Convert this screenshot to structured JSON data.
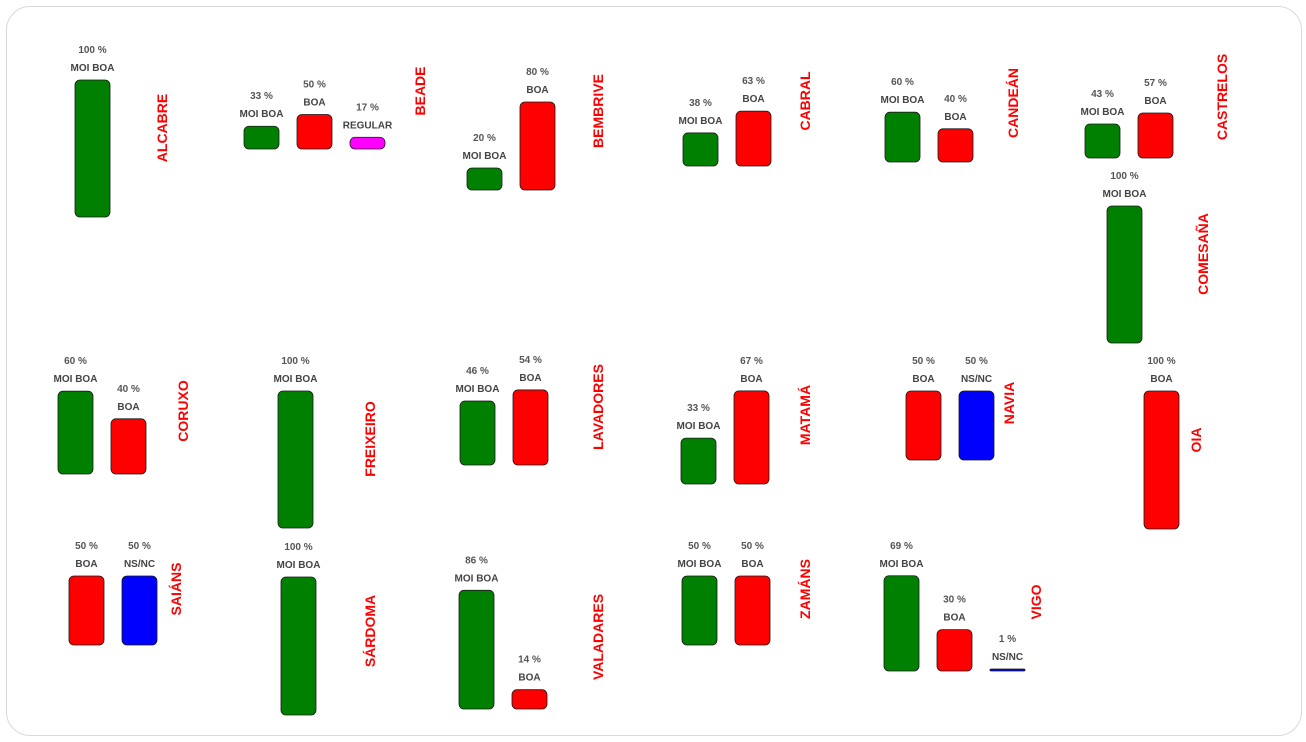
{
  "chart_data": {
    "type": "bar",
    "value_unit": "%",
    "colors": {
      "MOI BOA": "#008000",
      "BOA": "#ff0000",
      "REGULAR": "#ff00ff",
      "NS/NC": "#0000ff"
    },
    "charts": [
      {
        "title": "ALCABRE",
        "bars": [
          {
            "category": "MOI BOA",
            "value": 100,
            "label": "100 %"
          }
        ]
      },
      {
        "title": "BEADE",
        "bars": [
          {
            "category": "MOI BOA",
            "value": 33,
            "label": "33 %"
          },
          {
            "category": "BOA",
            "value": 50,
            "label": "50 %"
          },
          {
            "category": "REGULAR",
            "value": 17,
            "label": "17 %"
          }
        ]
      },
      {
        "title": "BEMBRIVE",
        "bars": [
          {
            "category": "MOI BOA",
            "value": 20,
            "label": "20 %"
          },
          {
            "category": "BOA",
            "value": 80,
            "label": "80 %"
          }
        ]
      },
      {
        "title": "CABRAL",
        "bars": [
          {
            "category": "MOI BOA",
            "value": 38,
            "label": "38 %"
          },
          {
            "category": "BOA",
            "value": 63,
            "label": "63 %"
          }
        ]
      },
      {
        "title": "CANDEÁN",
        "bars": [
          {
            "category": "MOI BOA",
            "value": 60,
            "label": "60 %"
          },
          {
            "category": "BOA",
            "value": 40,
            "label": "40 %"
          }
        ]
      },
      {
        "title": "CASTRELOS",
        "bars": [
          {
            "category": "MOI BOA",
            "value": 43,
            "label": "43 %"
          },
          {
            "category": "BOA",
            "value": 57,
            "label": "57 %"
          }
        ]
      },
      {
        "title": "COMESAÑA",
        "bars": [
          {
            "category": "MOI BOA",
            "value": 100,
            "label": "100 %"
          }
        ]
      },
      {
        "title": "CORUXO",
        "bars": [
          {
            "category": "MOI BOA",
            "value": 60,
            "label": "60 %"
          },
          {
            "category": "BOA",
            "value": 40,
            "label": "40 %"
          }
        ]
      },
      {
        "title": "FREIXEIRO",
        "bars": [
          {
            "category": "MOI BOA",
            "value": 100,
            "label": "100 %"
          }
        ]
      },
      {
        "title": "LAVADORES",
        "bars": [
          {
            "category": "MOI BOA",
            "value": 46,
            "label": "46 %"
          },
          {
            "category": "BOA",
            "value": 54,
            "label": "54 %"
          }
        ]
      },
      {
        "title": "MATAMÁ",
        "bars": [
          {
            "category": "MOI BOA",
            "value": 33,
            "label": "33 %"
          },
          {
            "category": "BOA",
            "value": 67,
            "label": "67 %"
          }
        ]
      },
      {
        "title": "NAVIA",
        "bars": [
          {
            "category": "BOA",
            "value": 50,
            "label": "50 %"
          },
          {
            "category": "NS/NC",
            "value": 50,
            "label": "50 %"
          }
        ]
      },
      {
        "title": "OIA",
        "bars": [
          {
            "category": "BOA",
            "value": 100,
            "label": "100 %"
          }
        ]
      },
      {
        "title": "SAIÁNS",
        "bars": [
          {
            "category": "BOA",
            "value": 50,
            "label": "50 %"
          },
          {
            "category": "NS/NC",
            "value": 50,
            "label": "50 %"
          }
        ]
      },
      {
        "title": "SÁRDOMA",
        "bars": [
          {
            "category": "MOI BOA",
            "value": 100,
            "label": "100 %"
          }
        ]
      },
      {
        "title": "VALADARES",
        "bars": [
          {
            "category": "MOI BOA",
            "value": 86,
            "label": "86 %"
          },
          {
            "category": "BOA",
            "value": 14,
            "label": "14 %"
          }
        ]
      },
      {
        "title": "ZAMÁNS",
        "bars": [
          {
            "category": "MOI BOA",
            "value": 50,
            "label": "50 %"
          },
          {
            "category": "BOA",
            "value": 50,
            "label": "50 %"
          }
        ]
      },
      {
        "title": "VIGO",
        "bars": [
          {
            "category": "MOI BOA",
            "value": 69,
            "label": "69 %"
          },
          {
            "category": "BOA",
            "value": 30,
            "label": "30 %"
          },
          {
            "category": "NS/NC",
            "value": 1,
            "label": "1 %"
          }
        ]
      }
    ]
  }
}
